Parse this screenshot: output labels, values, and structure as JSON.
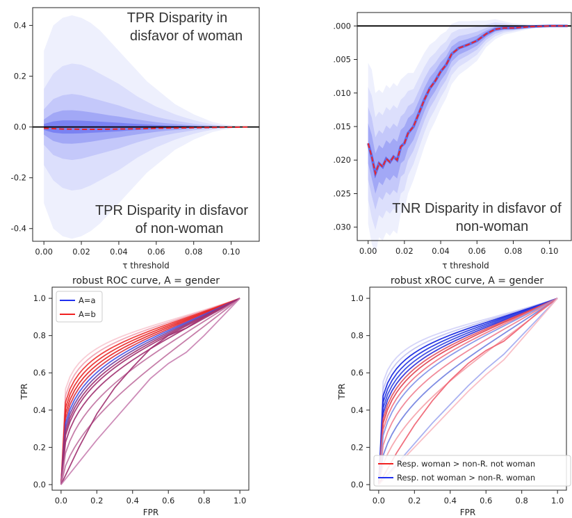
{
  "chart_data": [
    {
      "type": "area",
      "xlabel": "τ threshold",
      "ylabel": "",
      "xlim": [
        -0.006,
        0.115
      ],
      "ylim": [
        -0.45,
        0.47
      ],
      "xticks": [
        0.0,
        0.02,
        0.04,
        0.06,
        0.08,
        0.1
      ],
      "xtick_labels": [
        "0.00",
        "0.02",
        "0.04",
        "0.06",
        "0.08",
        "0.10"
      ],
      "yticks": [
        0.4,
        0.2,
        0.0,
        -0.2,
        -0.4
      ],
      "ytick_labels": [
        "0.4",
        "0.2",
        "0.0",
        "-0.2",
        "-0.4"
      ],
      "annotations": {
        "top_line1": "TPR Disparity in",
        "top_line2": "disfavor of woman",
        "bottom_line1": "TPR Disparity in disfavor",
        "bottom_line2": "of non-woman"
      },
      "band_x": [
        0.0,
        0.005,
        0.01,
        0.015,
        0.02,
        0.025,
        0.03,
        0.035,
        0.04,
        0.045,
        0.05,
        0.055,
        0.06,
        0.065,
        0.07,
        0.075,
        0.08,
        0.085,
        0.09,
        0.095,
        0.1,
        0.105,
        0.11
      ],
      "bands": [
        {
          "upper": [
            0.3,
            0.4,
            0.43,
            0.44,
            0.43,
            0.41,
            0.38,
            0.34,
            0.3,
            0.26,
            0.22,
            0.18,
            0.15,
            0.12,
            0.09,
            0.07,
            0.05,
            0.035,
            0.02,
            0.012,
            0.006,
            0.003,
            0.0
          ],
          "color": "#eef0fd"
        },
        {
          "upper": [
            0.15,
            0.21,
            0.24,
            0.25,
            0.245,
            0.23,
            0.21,
            0.19,
            0.17,
            0.145,
            0.12,
            0.1,
            0.08,
            0.065,
            0.05,
            0.038,
            0.027,
            0.018,
            0.011,
            0.006,
            0.003,
            0.0015,
            0.0
          ],
          "color": "#dcdffc"
        },
        {
          "upper": [
            0.07,
            0.11,
            0.125,
            0.13,
            0.125,
            0.115,
            0.105,
            0.095,
            0.085,
            0.072,
            0.06,
            0.05,
            0.04,
            0.032,
            0.025,
            0.019,
            0.013,
            0.009,
            0.006,
            0.003,
            0.0015,
            0.0008,
            0.0
          ],
          "color": "#c4c8fa"
        },
        {
          "upper": [
            0.03,
            0.055,
            0.065,
            0.066,
            0.063,
            0.058,
            0.052,
            0.046,
            0.041,
            0.035,
            0.029,
            0.024,
            0.019,
            0.015,
            0.012,
            0.009,
            0.006,
            0.004,
            0.003,
            0.0015,
            0.0008,
            0.0004,
            0.0
          ],
          "color": "#a2a8f6"
        },
        {
          "upper": [
            0.012,
            0.022,
            0.026,
            0.026,
            0.025,
            0.023,
            0.021,
            0.019,
            0.017,
            0.014,
            0.012,
            0.01,
            0.008,
            0.006,
            0.005,
            0.004,
            0.003,
            0.002,
            0.0012,
            0.0006,
            0.0003,
            0.0002,
            0.0
          ],
          "color": "#7a82f2"
        }
      ],
      "mean_line": {
        "x": [
          0.0,
          0.01,
          0.02,
          0.03,
          0.04,
          0.05,
          0.06,
          0.07,
          0.08,
          0.09,
          0.1,
          0.11
        ],
        "y": [
          -0.005,
          -0.008,
          -0.009,
          -0.009,
          -0.008,
          -0.007,
          -0.005,
          -0.004,
          -0.003,
          -0.002,
          -0.001,
          0.0
        ],
        "color": "#e8242a"
      },
      "zero_line": 0.0
    },
    {
      "type": "area",
      "xlabel": "τ threshold",
      "ylabel": "",
      "xlim": [
        -0.006,
        0.112
      ],
      "ylim": [
        -0.032,
        0.002
      ],
      "xticks": [
        0.0,
        0.02,
        0.04,
        0.06,
        0.08,
        0.1
      ],
      "xtick_labels": [
        "0.00",
        "0.02",
        "0.04",
        "0.06",
        "0.08",
        "0.10"
      ],
      "yticks": [
        0.0,
        -0.005,
        -0.01,
        -0.015,
        -0.02,
        -0.025,
        -0.03
      ],
      "ytick_labels": [
        ".000",
        ".005",
        ".010",
        ".015",
        ".020",
        ".025",
        ".030"
      ],
      "annotations": {
        "line1": "TNR Disparity in disfavor of",
        "line2": "non-woman"
      },
      "mean_line": {
        "x": [
          0.0,
          0.002,
          0.004,
          0.006,
          0.008,
          0.01,
          0.012,
          0.014,
          0.016,
          0.018,
          0.02,
          0.022,
          0.025,
          0.028,
          0.031,
          0.034,
          0.037,
          0.04,
          0.043,
          0.046,
          0.05,
          0.055,
          0.06,
          0.065,
          0.07,
          0.075,
          0.08,
          0.085,
          0.09,
          0.1,
          0.11
        ],
        "y": [
          -0.0175,
          -0.0195,
          -0.022,
          -0.0205,
          -0.021,
          -0.0198,
          -0.0203,
          -0.0195,
          -0.02,
          -0.018,
          -0.0175,
          -0.016,
          -0.015,
          -0.013,
          -0.011,
          -0.0093,
          -0.0082,
          -0.0068,
          -0.0058,
          -0.0042,
          -0.0033,
          -0.0028,
          -0.0022,
          -0.0012,
          -0.0005,
          -0.0003,
          -0.0003,
          -0.0002,
          -0.0001,
          0.0,
          0.0
        ],
        "color": "#e8242a"
      },
      "band_spread": [
        0.012,
        0.013,
        0.012,
        0.011,
        0.011,
        0.011,
        0.011,
        0.011,
        0.011,
        0.01,
        0.01,
        0.009,
        0.008,
        0.0075,
        0.007,
        0.0065,
        0.006,
        0.0055,
        0.005,
        0.0045,
        0.004,
        0.0035,
        0.003,
        0.002,
        0.0015,
        0.001,
        0.0007,
        0.0005,
        0.0003,
        0.0001,
        0.0
      ],
      "band_colors": [
        "#eef0fd",
        "#dcdffc",
        "#c4c8fa",
        "#a2a8f6"
      ],
      "zero_line": 0.0
    },
    {
      "type": "line",
      "title": "robust ROC curve, A = gender",
      "xlabel": "FPR",
      "ylabel": "TPR",
      "xlim": [
        -0.05,
        1.05
      ],
      "ylim": [
        -0.03,
        1.06
      ],
      "xticks": [
        0.0,
        0.2,
        0.4,
        0.6,
        0.8,
        1.0
      ],
      "yticks": [
        0.0,
        0.2,
        0.4,
        0.6,
        0.8,
        1.0
      ],
      "tick_labels": [
        "0.0",
        "0.2",
        "0.4",
        "0.6",
        "0.8",
        "1.0"
      ],
      "legend": [
        {
          "name": "A=a",
          "color": "#2030f0"
        },
        {
          "name": "A=b",
          "color": "#f02020"
        }
      ],
      "legend_position": "top-left",
      "curve_exponents": [
        0.18,
        0.2,
        0.22,
        0.24,
        0.26,
        0.28,
        0.3,
        0.32,
        0.34,
        0.36,
        0.4,
        0.48,
        0.62
      ],
      "curve_colors": [
        "#f8c8d0",
        "#f0a0b0",
        "#ee3030",
        "#e82828",
        "#e82020",
        "#d83040",
        "#4050e8",
        "#7040a0",
        "#a03070",
        "#a03070",
        "#a03070",
        "#c070a0",
        "#c070a0"
      ],
      "knee_curves": [
        {
          "x": [
            0.0,
            0.1,
            0.2,
            0.3,
            0.4,
            0.5,
            0.6,
            0.7,
            0.8,
            0.9,
            1.0
          ],
          "y": [
            0.0,
            0.2,
            0.38,
            0.52,
            0.63,
            0.73,
            0.8,
            0.84,
            0.9,
            0.95,
            1.0
          ],
          "color": "#a03070"
        },
        {
          "x": [
            0.0,
            0.1,
            0.2,
            0.3,
            0.4,
            0.5,
            0.6,
            0.7,
            0.8,
            0.9,
            1.0
          ],
          "y": [
            0.0,
            0.12,
            0.24,
            0.35,
            0.46,
            0.57,
            0.65,
            0.71,
            0.8,
            0.9,
            1.0
          ],
          "color": "#c880b0"
        }
      ]
    },
    {
      "type": "line",
      "title": "robust xROC curve, A = gender",
      "xlabel": "FPR",
      "ylabel": "TPR",
      "xlim": [
        -0.05,
        1.05
      ],
      "ylim": [
        -0.03,
        1.06
      ],
      "xticks": [
        0.0,
        0.2,
        0.4,
        0.6,
        0.8,
        1.0
      ],
      "yticks": [
        0.0,
        0.2,
        0.4,
        0.6,
        0.8,
        1.0
      ],
      "tick_labels": [
        "0.0",
        "0.2",
        "0.4",
        "0.6",
        "0.8",
        "1.0"
      ],
      "legend": [
        {
          "name": "Resp. woman > non-R. not woman",
          "color": "#f02020"
        },
        {
          "name": "Resp. not woman > non-R. woman",
          "color": "#2030f0"
        }
      ],
      "legend_position": "bottom-right",
      "curve_exponents": [
        0.16,
        0.18,
        0.2,
        0.22,
        0.24,
        0.26,
        0.28,
        0.3,
        0.33,
        0.36,
        0.42,
        0.5,
        0.6
      ],
      "curve_colors": [
        "#d0d0f8",
        "#c0c0f0",
        "#1020e0",
        "#2030e0",
        "#3040e0",
        "#2a2ad8",
        "#e05060",
        "#e04050",
        "#f07080",
        "#8090e8",
        "#f08090",
        "#7080e0",
        "#f5a0a8"
      ],
      "knee_curves": [
        {
          "x": [
            0.0,
            0.1,
            0.2,
            0.3,
            0.4,
            0.5,
            0.6,
            0.7,
            0.8,
            0.9,
            1.0
          ],
          "y": [
            0.0,
            0.17,
            0.32,
            0.45,
            0.56,
            0.65,
            0.72,
            0.77,
            0.85,
            0.93,
            1.0
          ],
          "color": "#f06070"
        },
        {
          "x": [
            0.0,
            0.1,
            0.2,
            0.3,
            0.4,
            0.5,
            0.6,
            0.7,
            0.8,
            0.9,
            1.0
          ],
          "y": [
            0.0,
            0.11,
            0.22,
            0.33,
            0.43,
            0.53,
            0.62,
            0.7,
            0.8,
            0.9,
            1.0
          ],
          "color": "#a0a8f0"
        },
        {
          "x": [
            0.0,
            0.1,
            0.2,
            0.3,
            0.4,
            0.5,
            0.6,
            0.7,
            0.8,
            0.9,
            1.0
          ],
          "y": [
            0.0,
            0.1,
            0.2,
            0.3,
            0.4,
            0.5,
            0.59,
            0.67,
            0.78,
            0.89,
            1.0
          ],
          "color": "#f8b8c0"
        }
      ]
    }
  ]
}
